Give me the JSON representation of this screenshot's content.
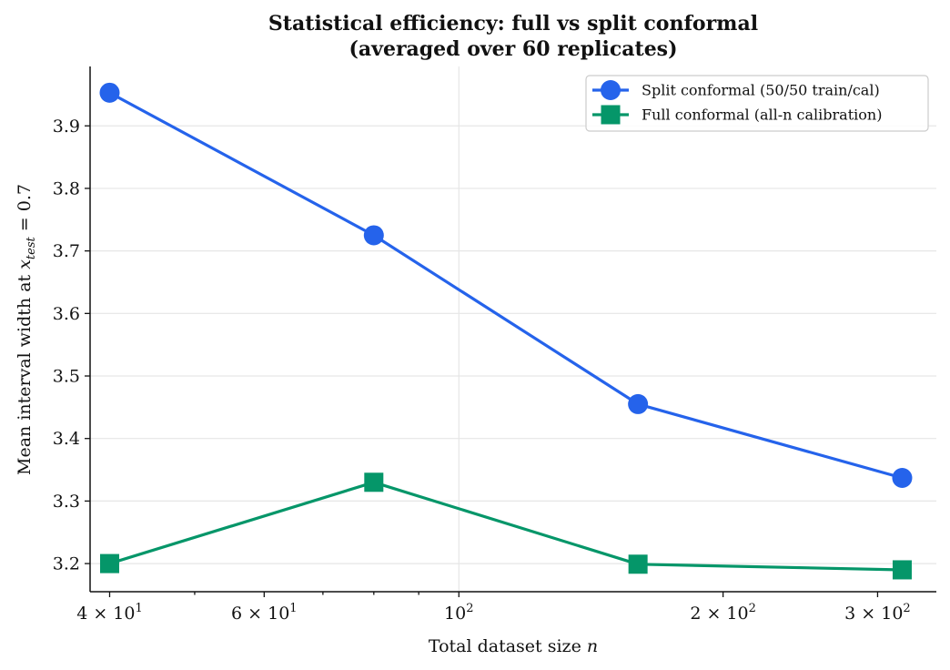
{
  "chart_data": {
    "type": "line",
    "title_line1": "Statistical efficiency: full vs split conformal",
    "title_line2": "(averaged over 60 replicates)",
    "xlabel": "Total dataset size n",
    "ylabel": "Mean interval width at x_test = 0.7",
    "x_scale": "log",
    "x": [
      40,
      80,
      160,
      320
    ],
    "xlim": [
      38,
      350
    ],
    "ylim": [
      3.155,
      3.995
    ],
    "x_ticks": [
      {
        "value": 40,
        "base": "4 × 10",
        "exp": "1"
      },
      {
        "value": 60,
        "base": "6 × 10",
        "exp": "1"
      },
      {
        "value": 100,
        "base": "10",
        "exp": "2"
      },
      {
        "value": 200,
        "base": "2 × 10",
        "exp": "2"
      },
      {
        "value": 300,
        "base": "3 × 10",
        "exp": "2"
      }
    ],
    "x_minor_ticks": [
      50,
      70,
      80,
      90
    ],
    "y_ticks": [
      "3.2",
      "3.3",
      "3.4",
      "3.5",
      "3.6",
      "3.7",
      "3.8",
      "3.9"
    ],
    "grid": true,
    "legend_position": "top-right",
    "series": [
      {
        "name": "Split conformal (50/50 train/cal)",
        "values": [
          3.953,
          3.725,
          3.455,
          3.337
        ],
        "color": "#2563eb",
        "marker": "circle"
      },
      {
        "name": "Full conformal (all-n calibration)",
        "values": [
          3.2,
          3.33,
          3.199,
          3.19
        ],
        "color": "#059669",
        "marker": "square"
      }
    ]
  }
}
